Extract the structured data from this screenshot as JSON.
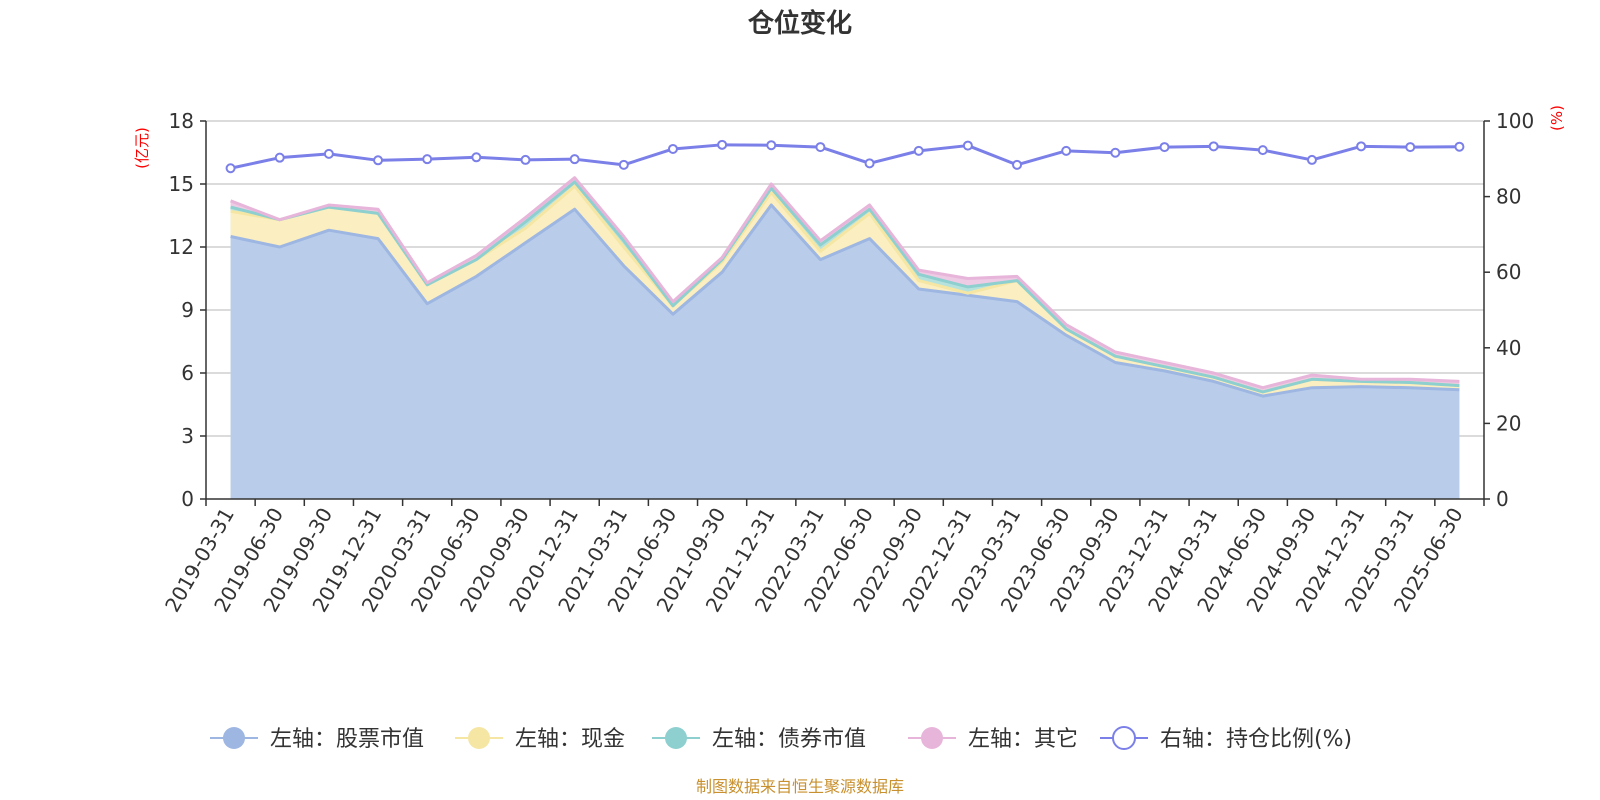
{
  "chart_data": {
    "type": "area",
    "title": "仓位变化",
    "left_axis_unit": "(亿元)",
    "right_axis_unit": "(%)",
    "left_ylim": [
      0,
      18
    ],
    "left_ticks": [
      0,
      3,
      6,
      9,
      12,
      15,
      18
    ],
    "right_ylim": [
      0,
      100
    ],
    "right_ticks": [
      0,
      20,
      40,
      60,
      80,
      100
    ],
    "grid": true,
    "legend_position": "bottom",
    "categories": [
      "2019-03-31",
      "2019-06-30",
      "2019-09-30",
      "2019-12-31",
      "2020-03-31",
      "2020-06-30",
      "2020-09-30",
      "2020-12-31",
      "2021-03-31",
      "2021-06-30",
      "2021-09-30",
      "2021-12-31",
      "2022-03-31",
      "2022-06-30",
      "2022-09-30",
      "2022-12-31",
      "2023-03-31",
      "2023-06-30",
      "2023-09-30",
      "2023-12-31",
      "2024-03-31",
      "2024-06-30",
      "2024-09-30",
      "2024-12-31",
      "2025-03-31",
      "2025-06-30"
    ],
    "stacked_series": [
      {
        "name": "左轴：股票市值",
        "color": "#9db6e2",
        "fill": "#b9cdea",
        "values": [
          12.5,
          12.0,
          12.8,
          12.4,
          9.3,
          10.6,
          12.2,
          13.8,
          11.1,
          8.8,
          10.8,
          14.0,
          11.4,
          12.4,
          10.0,
          9.7,
          9.4,
          7.8,
          6.5,
          6.1,
          5.6,
          4.9,
          5.3,
          5.35,
          5.3,
          5.2
        ],
        "labels": [
          {
            "name": "股票市值",
            "value": "12.5"
          }
        ]
      },
      {
        "name": "左轴：现金",
        "color": "#f5e6a3",
        "fill": "#fbeec0",
        "values": [
          1.2,
          1.3,
          1.1,
          1.2,
          0.9,
          0.8,
          0.7,
          1.1,
          0.9,
          0.4,
          0.5,
          0.6,
          0.4,
          1.2,
          0.4,
          0.1,
          1.0,
          0.3,
          0.3,
          0.2,
          0.2,
          0.2,
          0.4,
          0.25,
          0.25,
          0.2
        ]
      },
      {
        "name": "左轴：债券市值",
        "color": "#8ecfcf",
        "fill": "#b6e2de",
        "values": [
          0.2,
          0.0,
          0.0,
          0.0,
          0.0,
          0.0,
          0.3,
          0.2,
          0.3,
          0.0,
          0.1,
          0.2,
          0.3,
          0.2,
          0.3,
          0.3,
          0.0,
          0.0,
          0.0,
          0.0,
          0.0,
          0.0,
          0.0,
          0.0,
          0.0,
          0.0
        ]
      },
      {
        "name": "左轴：其它",
        "color": "#e7b5da",
        "fill": "#eecbe4",
        "values": [
          0.3,
          0.0,
          0.1,
          0.2,
          0.1,
          0.2,
          0.2,
          0.2,
          0.2,
          0.2,
          0.1,
          0.2,
          0.2,
          0.2,
          0.2,
          0.4,
          0.2,
          0.2,
          0.2,
          0.2,
          0.2,
          0.2,
          0.2,
          0.1,
          0.15,
          0.2
        ]
      }
    ],
    "line_series": {
      "name": "右轴：持仓比例(%)",
      "color": "#7b7fe8",
      "values": [
        87.5,
        90.3,
        91.3,
        89.6,
        89.9,
        90.4,
        89.7,
        89.9,
        88.4,
        92.6,
        93.7,
        93.6,
        93.1,
        88.8,
        92.1,
        93.5,
        88.4,
        92.1,
        91.6,
        93.1,
        93.3,
        92.3,
        89.7,
        93.3,
        93.1,
        93.2
      ]
    }
  },
  "source_note": "制图数据来自恒生聚源数据库"
}
